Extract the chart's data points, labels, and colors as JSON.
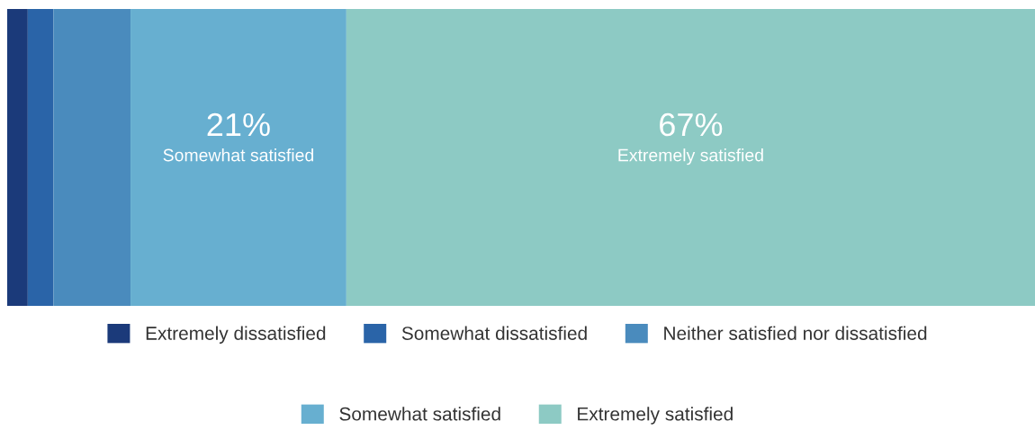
{
  "chart_data": {
    "type": "bar",
    "orientation": "horizontal",
    "stacked": true,
    "categories": [
      null
    ],
    "series": [
      {
        "name": "Extremely dissatisfied",
        "color": "#1b3a7a",
        "values": [
          2
        ],
        "value_labels": [
          null
        ]
      },
      {
        "name": "Somewhat dissatisfied",
        "color": "#2a64a8",
        "values": [
          2.5
        ],
        "value_labels": [
          null
        ]
      },
      {
        "name": "Neither satisfied nor dissatisfied",
        "color": "#4a8bbd",
        "values": [
          7.5
        ],
        "value_labels": [
          null
        ]
      },
      {
        "name": "Somewhat satisfied",
        "color": "#67afd0",
        "values": [
          21
        ],
        "value_labels": [
          "21%"
        ]
      },
      {
        "name": "Extremely satisfied",
        "color": "#8dcac4",
        "values": [
          67
        ],
        "value_labels": [
          "67%"
        ]
      }
    ],
    "xlim": [
      0,
      100
    ],
    "tick_labels": false,
    "legend": "bottom"
  }
}
